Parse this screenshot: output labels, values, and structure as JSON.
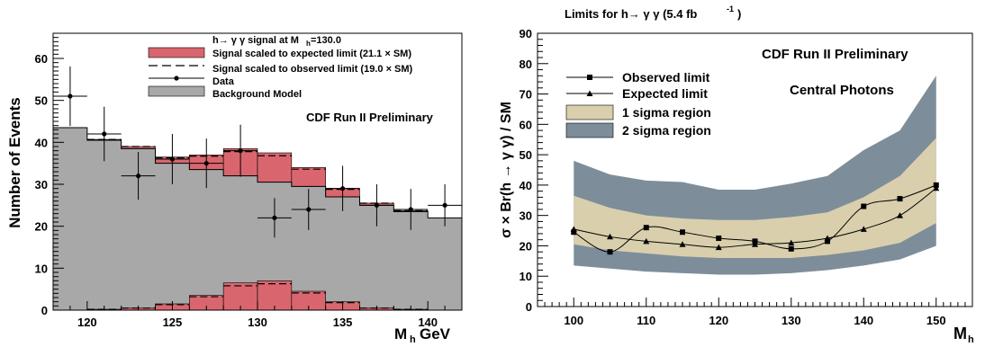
{
  "chart_data": [
    {
      "type": "histogram",
      "xlabel_main": "M",
      "xlabel_sub": "h",
      "xlabel_unit": "GeV",
      "ylabel": "Number of Events",
      "xlim": [
        118,
        142
      ],
      "ylim": [
        0,
        66
      ],
      "xticks": [
        120,
        125,
        130,
        135,
        140
      ],
      "yticks": [
        0,
        10,
        20,
        30,
        40,
        50,
        60
      ],
      "annotation": "CDF Run II Preliminary",
      "legend_title": "h→ γ γ signal at M",
      "legend_title_sub": "h",
      "legend_title_value": "=130.0",
      "legend": [
        {
          "label": "Signal scaled to expected limit (21.1 × SM)",
          "color": "#d9666e"
        },
        {
          "label": "Signal scaled to observed limit (19.0 × SM)",
          "color": "#000000"
        },
        {
          "label": "Data",
          "color": "#000000"
        },
        {
          "label": "Background Model",
          "color": "#a8a8a8"
        }
      ],
      "bin_edges": [
        118,
        120,
        122,
        124,
        126,
        128,
        130,
        132,
        134,
        136,
        138,
        140,
        142
      ],
      "background": [
        43.5,
        40.5,
        38.5,
        35,
        33.5,
        32,
        30.5,
        29.5,
        27,
        25,
        23.5,
        22
      ],
      "signal_expected": [
        0,
        0.2,
        0.5,
        1.5,
        3.5,
        6.5,
        7,
        4.5,
        2,
        0.5,
        0.2,
        0
      ],
      "signal_observed": [
        0,
        0.2,
        0.5,
        1.3,
        3.2,
        5.8,
        6.3,
        4.1,
        1.8,
        0.5,
        0.2,
        0
      ],
      "data": {
        "x": [
          119,
          121,
          123,
          125,
          127,
          129,
          131,
          133,
          135,
          137,
          139,
          141
        ],
        "y": [
          51,
          42,
          32,
          36,
          35,
          38,
          22,
          24,
          29,
          25,
          24,
          25
        ],
        "yerr": [
          7.1,
          6.5,
          5.7,
          6.0,
          5.9,
          6.2,
          4.7,
          4.9,
          5.4,
          5.0,
          4.9,
          5.0
        ]
      }
    },
    {
      "type": "line",
      "title": "Limits for h→ γ γ (5.4 fb",
      "title_sup": "-1",
      "title_end": ")",
      "xlabel_main": "M",
      "xlabel_sub": "h",
      "ylabel": "σ × Br(h → γ γ) / SM",
      "xlim": [
        95,
        155
      ],
      "ylim": [
        0,
        90
      ],
      "xticks": [
        100,
        110,
        120,
        130,
        140,
        150
      ],
      "yticks": [
        0,
        10,
        20,
        30,
        40,
        50,
        60,
        70,
        80,
        90
      ],
      "annotations": [
        "CDF Run II Preliminary",
        "Central Photons"
      ],
      "legend": [
        {
          "label": "Observed limit",
          "color": "#000000"
        },
        {
          "label": "Expected limit",
          "color": "#000000"
        },
        {
          "label": "1 sigma region",
          "color": "#d9cfad"
        },
        {
          "label": "2 sigma region",
          "color": "#7d8e9a"
        }
      ],
      "x": [
        100,
        105,
        110,
        115,
        120,
        125,
        130,
        135,
        140,
        145,
        150
      ],
      "observed": [
        24.5,
        18,
        26,
        24.5,
        22.5,
        21.5,
        19,
        21.5,
        33,
        35.5,
        40
      ],
      "expected": [
        25.5,
        23,
        21.5,
        20.5,
        19.5,
        20.5,
        21,
        22.5,
        25.5,
        30,
        39
      ],
      "band1_low": [
        20.5,
        18.5,
        17.5,
        16.5,
        16,
        16,
        16,
        17,
        18.5,
        21,
        27.5
      ],
      "band1_high": [
        36.5,
        32.5,
        30,
        29,
        28.5,
        28.5,
        29.5,
        31,
        36,
        43,
        55.5
      ],
      "band2_low": [
        13.5,
        12.5,
        11.5,
        11,
        10.5,
        10.5,
        11,
        12,
        13.5,
        15.5,
        20
      ],
      "band2_high": [
        48,
        43.5,
        41.5,
        41,
        38.5,
        38.5,
        40.5,
        43,
        51.5,
        58,
        76
      ]
    }
  ]
}
